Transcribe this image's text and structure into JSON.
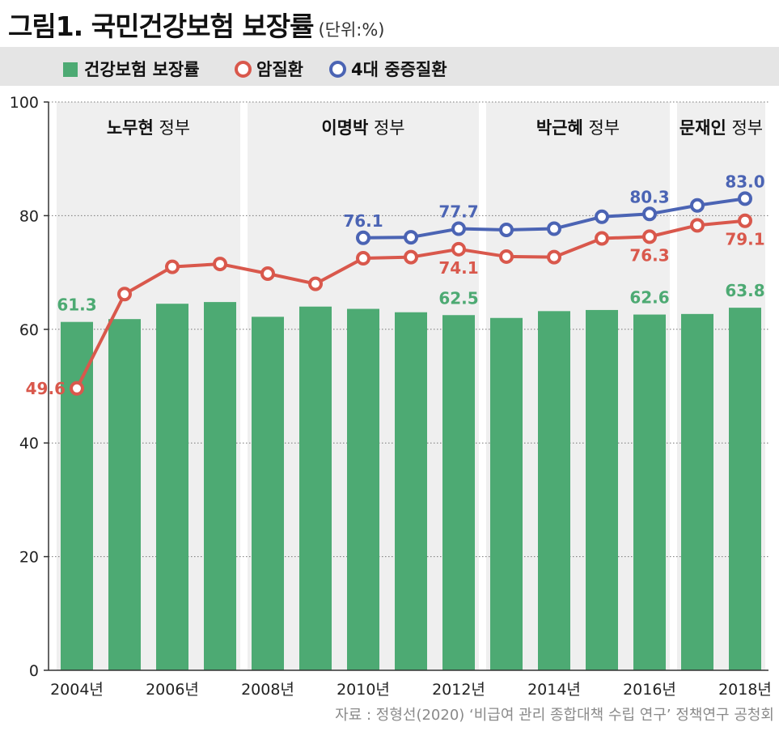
{
  "title": {
    "main": "그림1. 국민건강보험 보장률",
    "unit": "(단위:%)"
  },
  "legend": {
    "bar": "건강보험 보장률",
    "cancer": "암질환",
    "major": "4대 중증질환"
  },
  "colors": {
    "bar": "#4daa73",
    "cancer": "#d9584c",
    "major": "#4b64b4",
    "band": "#efefef"
  },
  "eras": [
    {
      "bold": "노무현",
      "rest": " 정부"
    },
    {
      "bold": "이명박",
      "rest": " 정부"
    },
    {
      "bold": "박근혜",
      "rest": " 정부"
    },
    {
      "bold": "문재인",
      "rest": " 정부"
    }
  ],
  "source": "자료 : 정형선(2020) ‘비급여 관리 종합대책 수립 연구’ 정책연구 공청회",
  "chart_data": {
    "type": "bar",
    "years": [
      2004,
      2005,
      2006,
      2007,
      2008,
      2009,
      2010,
      2011,
      2012,
      2013,
      2014,
      2015,
      2016,
      2017,
      2018
    ],
    "x_tick_labels": [
      "2004년",
      "2006년",
      "2008년",
      "2010년",
      "2012년",
      "2014년",
      "2016년",
      "2018년"
    ],
    "ylim": [
      0,
      100
    ],
    "y_ticks": [
      0,
      20,
      40,
      60,
      80,
      100
    ],
    "grid": "dotted horizontal",
    "legend_position": "top",
    "eras": [
      {
        "from": 2004,
        "to": 2007
      },
      {
        "from": 2008,
        "to": 2012
      },
      {
        "from": 2013,
        "to": 2016
      },
      {
        "from": 2017,
        "to": 2018
      }
    ],
    "series": [
      {
        "name": "건강보험 보장률",
        "type": "bar",
        "values": [
          61.3,
          61.8,
          64.5,
          64.8,
          62.2,
          64.0,
          63.6,
          63.0,
          62.5,
          62.0,
          63.2,
          63.4,
          62.6,
          62.7,
          63.8
        ],
        "labels": {
          "2004": "61.3",
          "2012": "62.5",
          "2016": "62.6",
          "2018": "63.8"
        }
      },
      {
        "name": "암질환",
        "type": "line",
        "values": [
          49.6,
          66.2,
          71.0,
          71.5,
          69.8,
          68.0,
          72.5,
          72.7,
          74.1,
          72.8,
          72.7,
          76.0,
          76.3,
          78.3,
          79.1
        ],
        "labels": {
          "2004": "49.6",
          "2012": "74.1",
          "2016": "76.3",
          "2018": "79.1"
        }
      },
      {
        "name": "4대 중증질환",
        "type": "line",
        "values": [
          null,
          null,
          null,
          null,
          null,
          null,
          76.1,
          76.2,
          77.7,
          77.5,
          77.7,
          79.8,
          80.3,
          81.8,
          83.0
        ],
        "labels": {
          "2010": "76.1",
          "2012": "77.7",
          "2016": "80.3",
          "2018": "83.0"
        }
      }
    ]
  }
}
